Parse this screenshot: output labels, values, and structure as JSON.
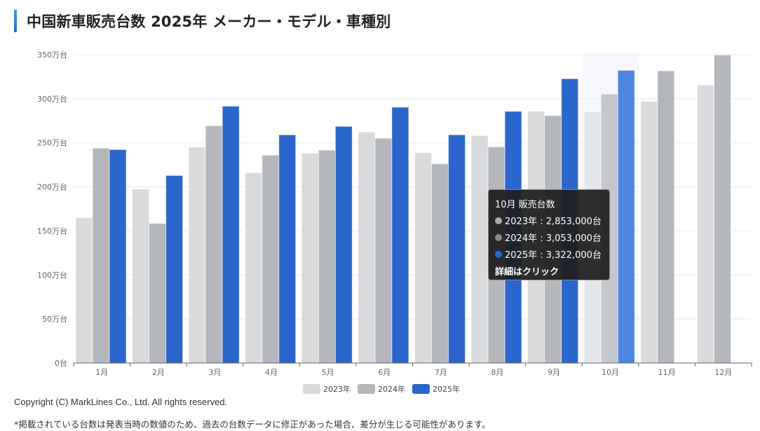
{
  "page": {
    "title": "中国新車販売台数 2025年 メーカー・モデル・車種別",
    "copyright": "Copyright (C) MarkLines Co., Ltd. All rights reserved.",
    "note": "*掲載されている台数は発表当時の数値のため、過去の台数データに修正があった場合、差分が生じる可能性があります。"
  },
  "colors": {
    "s2023": "#d9dadc",
    "s2024": "#b4b7bb",
    "s2025": "#2a66cc",
    "highlight_band": "#f5f7fb",
    "grid": "#e3e8f0",
    "axis": "#666666"
  },
  "tooltip": {
    "title": "10月 販売台数",
    "rows": [
      {
        "label": "2023年 : 2,853,000台",
        "color": "#aaaaaa"
      },
      {
        "label": "2024年 : 3,053,000台",
        "color": "#888888"
      },
      {
        "label": "2025年 : 3,322,000台",
        "color": "#2a66cc"
      }
    ],
    "link": "詳細はクリック"
  },
  "chart_data": {
    "type": "bar",
    "title": "中国新車販売台数 2025年",
    "xlabel": "",
    "ylabel": "",
    "unit": "万台",
    "ylim": [
      0,
      350
    ],
    "yticks": [
      0,
      50,
      100,
      150,
      200,
      250,
      300,
      350
    ],
    "ytick_labels": [
      "0台",
      "50万台",
      "100万台",
      "150万台",
      "200万台",
      "250万台",
      "300万台",
      "350万台"
    ],
    "grid": true,
    "legend_position": "bottom",
    "highlighted_category": "10月",
    "categories": [
      "1月",
      "2月",
      "3月",
      "4月",
      "5月",
      "6月",
      "7月",
      "8月",
      "9月",
      "10月",
      "11月",
      "12月"
    ],
    "series": [
      {
        "name": "2023年",
        "values": [
          164.9,
          197.6,
          245.1,
          215.9,
          238.2,
          262.2,
          238.7,
          258.2,
          285.8,
          285.3,
          297.0,
          315.6
        ]
      },
      {
        "name": "2024年",
        "values": [
          243.9,
          158.4,
          269.4,
          235.9,
          241.7,
          255.2,
          226.2,
          245.3,
          280.9,
          305.3,
          331.6,
          349.6
        ]
      },
      {
        "name": "2025年",
        "values": [
          242.3,
          212.9,
          291.5,
          259.0,
          268.6,
          290.4,
          259.1,
          285.7,
          322.7,
          332.2,
          null,
          null
        ]
      }
    ]
  }
}
